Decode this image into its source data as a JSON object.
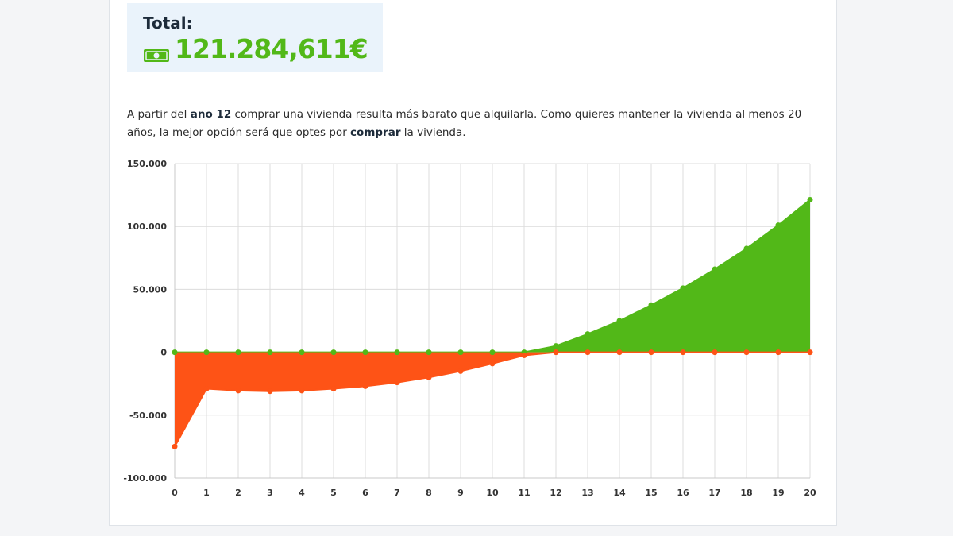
{
  "summary": {
    "total_label": "Total:",
    "total_value": "121.284,611€",
    "icon": "money-bill-icon",
    "accent_color": "#52b818"
  },
  "description": {
    "p1": "A partir del ",
    "b1": "año 12",
    "p2": " comprar una vivienda resulta más barato que alquilarla. Como quieres mantener la vivienda al menos 20 años, la mejor opción será que optes por ",
    "b2": "comprar",
    "p3": " la vivienda."
  },
  "chart_data": {
    "type": "area",
    "x": [
      0,
      1,
      2,
      3,
      4,
      5,
      6,
      7,
      8,
      9,
      10,
      11,
      12,
      13,
      14,
      15,
      16,
      17,
      18,
      19,
      20
    ],
    "ylim": [
      -100000,
      150000
    ],
    "yticks": [
      150000,
      100000,
      50000,
      0,
      -50000,
      -100000
    ],
    "ytick_labels": [
      "150.000",
      "100.000",
      "50.000",
      "0",
      "-50.000",
      "-100.000"
    ],
    "grid": true,
    "series": [
      {
        "color": "#52b818",
        "values": [
          0,
          0,
          0,
          0,
          0,
          0,
          0,
          0,
          0,
          0,
          0,
          0,
          5000,
          14500,
          25000,
          37500,
          51000,
          66000,
          82500,
          101000,
          121284.611
        ]
      },
      {
        "color": "#fe5316",
        "values": [
          -75000,
          -29000,
          -30500,
          -31000,
          -30500,
          -29000,
          -27000,
          -24000,
          -20000,
          -15000,
          -9000,
          -2500,
          0,
          0,
          0,
          0,
          0,
          0,
          0,
          0,
          0
        ]
      }
    ]
  }
}
